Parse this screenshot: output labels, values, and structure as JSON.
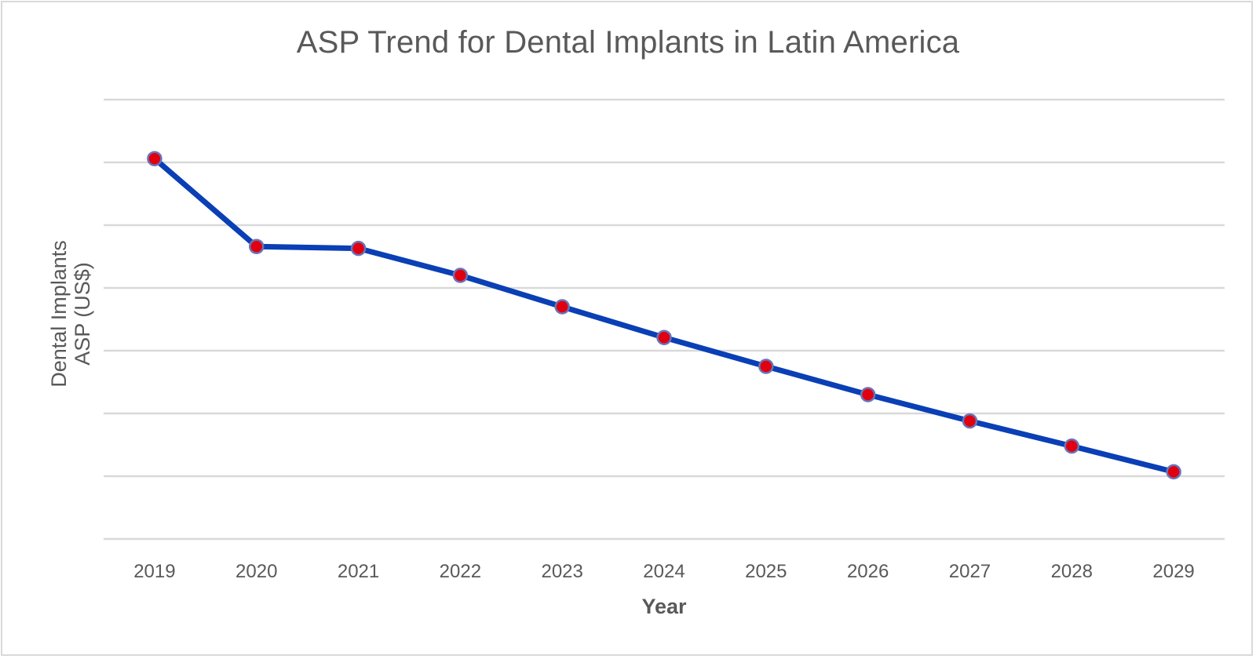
{
  "chart_data": {
    "type": "line",
    "title": "ASP Trend for Dental Implants in Latin America",
    "xlabel": "Year",
    "ylabel_lines": [
      "Dental Implants",
      "ASP (US$)"
    ],
    "ylabel": "Dental Implants ASP (US$)",
    "y_tick_labels_shown": false,
    "y_units_note": "relative gridline units (no y tick labels shown)",
    "ylim": [
      0,
      7
    ],
    "gridlines": [
      0,
      1,
      2,
      3,
      4,
      5,
      6,
      7
    ],
    "grid": true,
    "legend": "none",
    "categories": [
      "2019",
      "2020",
      "2021",
      "2022",
      "2023",
      "2024",
      "2025",
      "2026",
      "2027",
      "2028",
      "2029"
    ],
    "series": [
      {
        "name": "Dental Implants ASP",
        "values": [
          6.06,
          4.66,
          4.63,
          4.2,
          3.7,
          3.21,
          2.75,
          2.3,
          1.88,
          1.48,
          1.07
        ],
        "line_color": "#0a3fb5",
        "marker_color": "#e0000f",
        "marker_edge_color": "#6a74b8"
      }
    ],
    "colors": {
      "grid": "#d9d9d9",
      "text": "#595959"
    }
  }
}
